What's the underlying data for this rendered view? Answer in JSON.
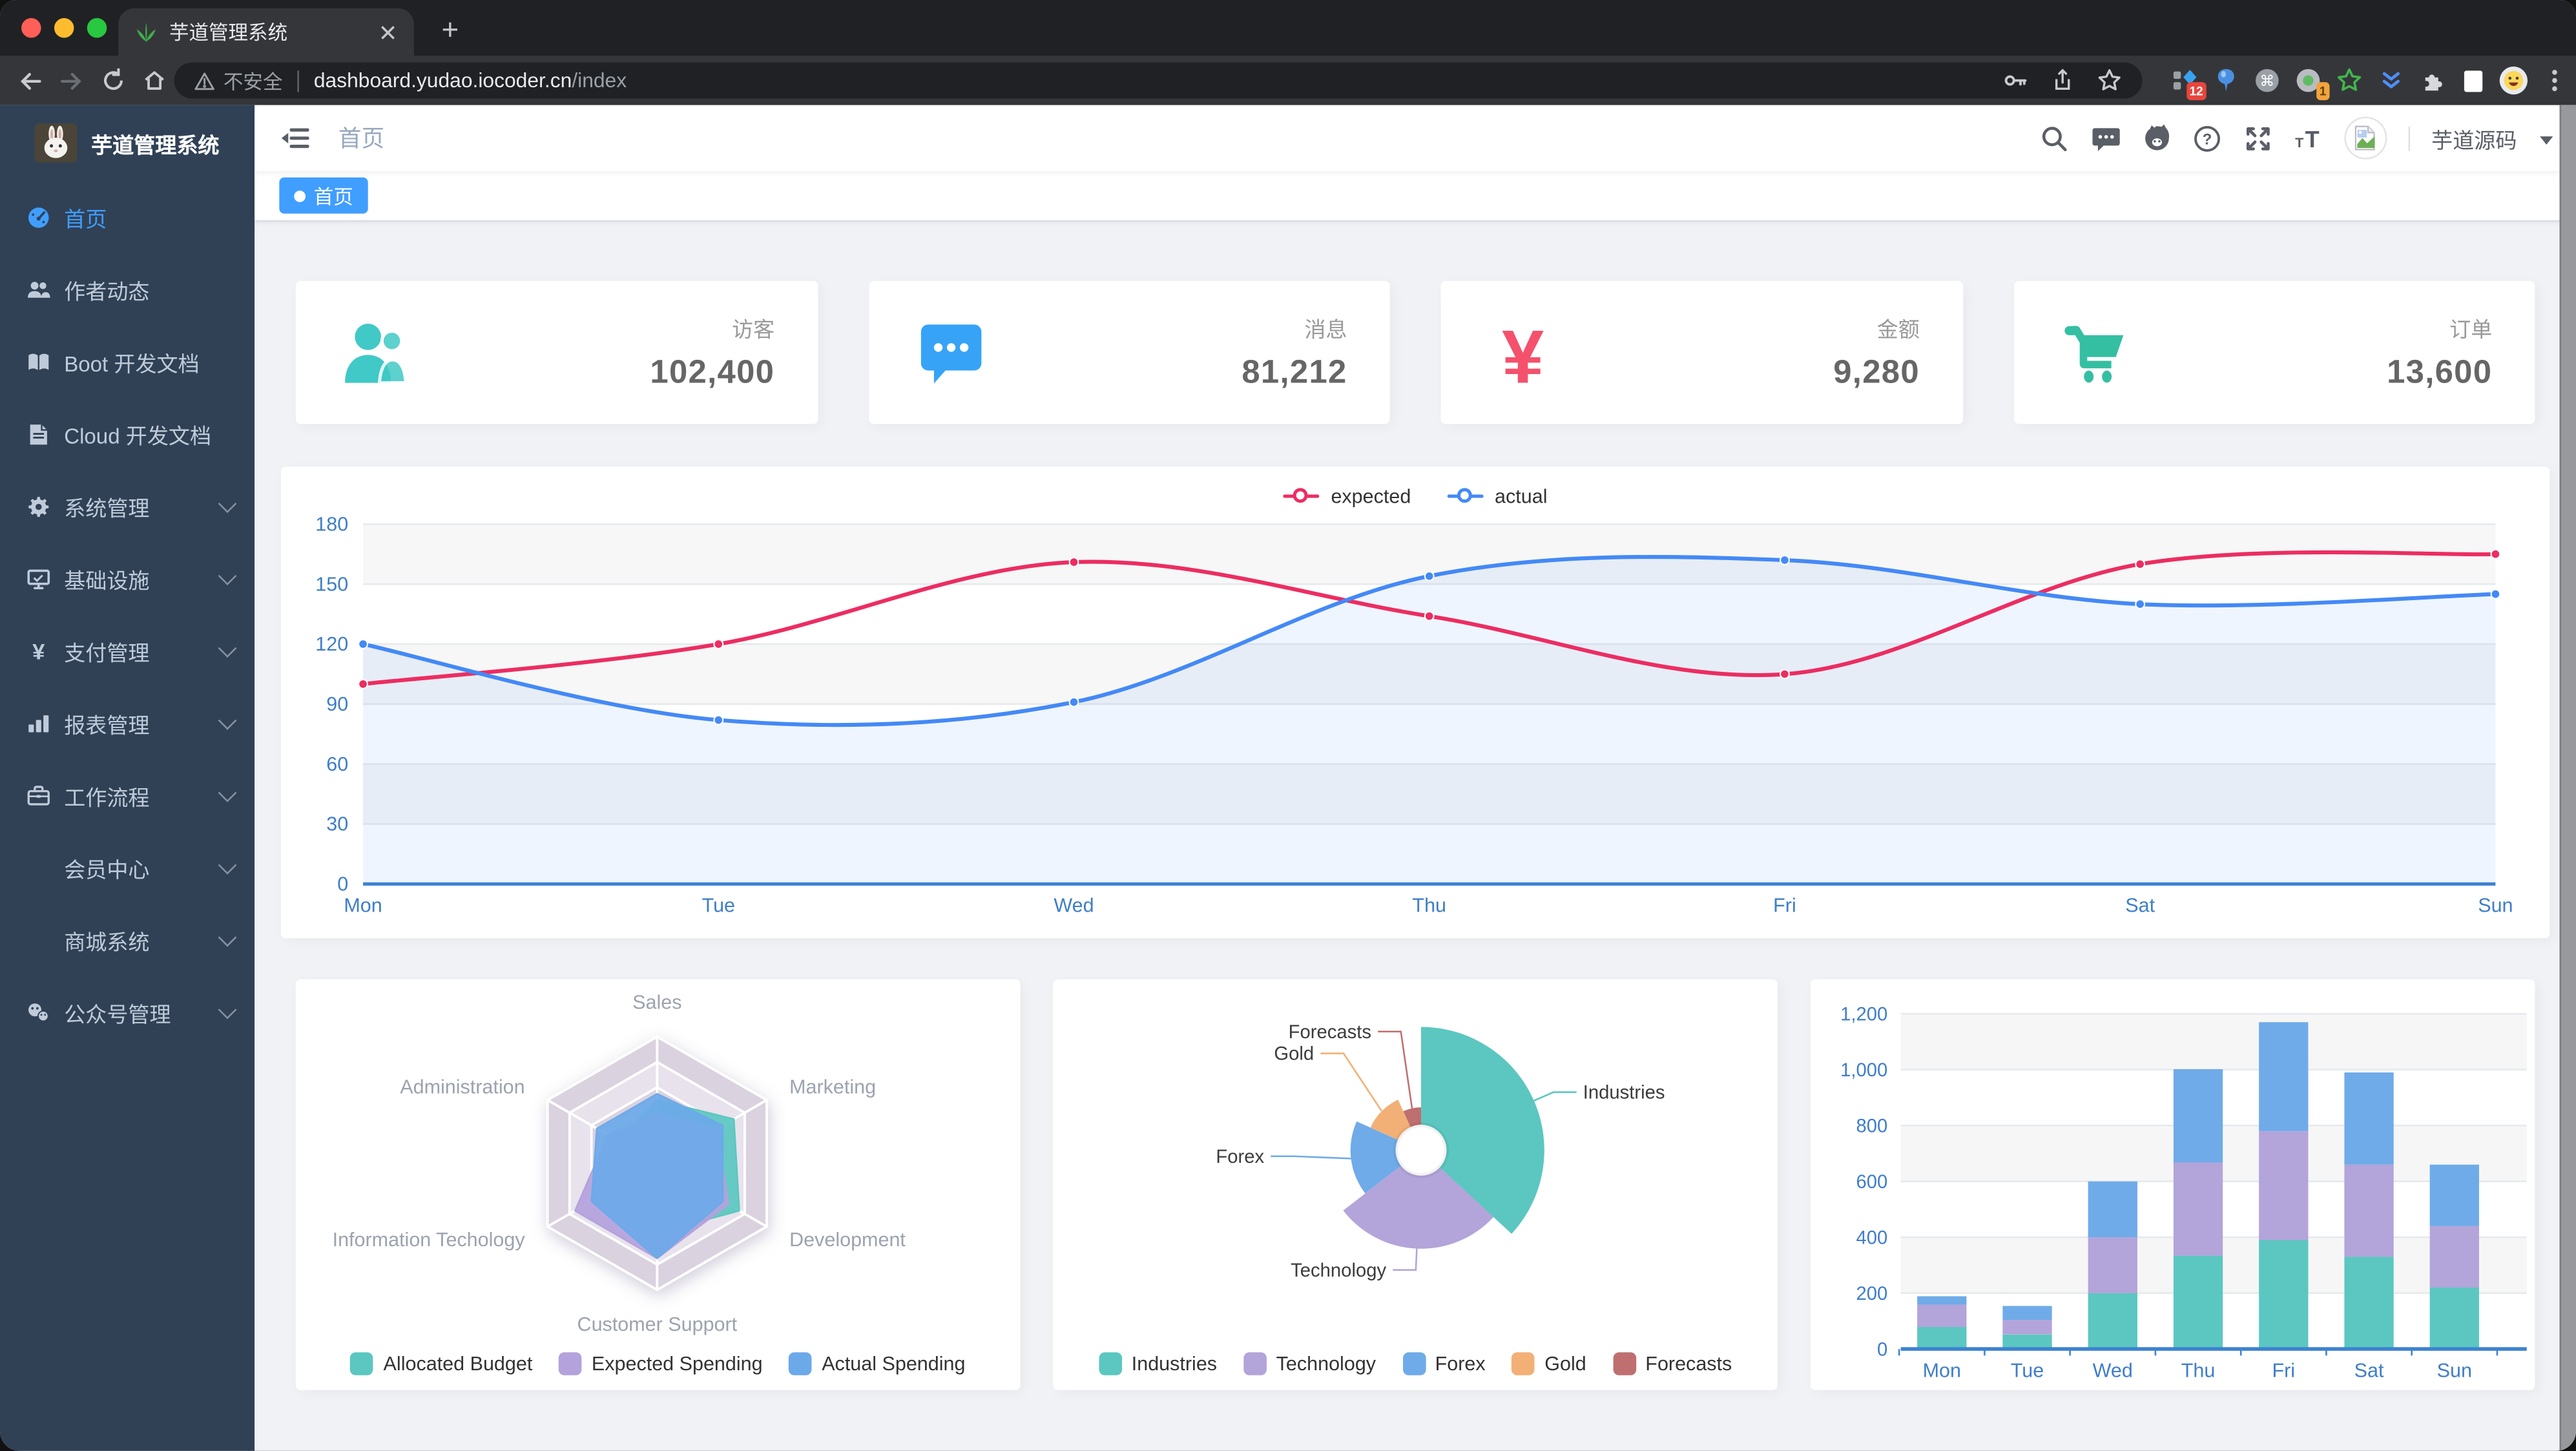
{
  "browser": {
    "tab": {
      "title": "芋道管理系统"
    },
    "address": {
      "security": "不安全",
      "url_host": "dashboard.yudao.iocoder.cn",
      "url_path": "/index"
    },
    "badges": {
      "ext1": "12",
      "ext4": "1"
    }
  },
  "sidebar": {
    "logo_title": "芋道管理系统",
    "items": [
      {
        "label": "首页",
        "icon": "dashboard-icon",
        "active": true
      },
      {
        "label": "作者动态",
        "icon": "people-icon"
      },
      {
        "label": "Boot 开发文档",
        "icon": "book-icon"
      },
      {
        "label": "Cloud 开发文档",
        "icon": "document-icon"
      },
      {
        "label": "系统管理",
        "icon": "gear-icon",
        "expandable": true
      },
      {
        "label": "基础设施",
        "icon": "monitor-icon",
        "expandable": true
      },
      {
        "label": "支付管理",
        "icon": "yen-icon",
        "expandable": true
      },
      {
        "label": "报表管理",
        "icon": "bar-chart-icon",
        "expandable": true
      },
      {
        "label": "工作流程",
        "icon": "briefcase-icon",
        "expandable": true
      },
      {
        "label": "会员中心",
        "icon": null,
        "expandable": true
      },
      {
        "label": "商城系统",
        "icon": null,
        "expandable": true
      },
      {
        "label": "公众号管理",
        "icon": "wechat-icon",
        "expandable": true
      }
    ]
  },
  "navbar": {
    "breadcrumb": "首页",
    "username": "芋道源码"
  },
  "tags": {
    "active": "首页"
  },
  "stats": {
    "cards": [
      {
        "label": "访客",
        "value": "102,400",
        "icon": "peoples-icon",
        "color": "#40c9c6"
      },
      {
        "label": "消息",
        "value": "81,212",
        "icon": "message-icon",
        "color": "#36a3f7"
      },
      {
        "label": "金额",
        "value": "9,280",
        "icon": "money-icon",
        "color": "#f4516c"
      },
      {
        "label": "订单",
        "value": "13,600",
        "icon": "cart-icon",
        "color": "#34bfa3"
      }
    ]
  },
  "chart_data": [
    {
      "id": "weekly-line",
      "type": "line",
      "x": [
        "Mon",
        "Tue",
        "Wed",
        "Thu",
        "Fri",
        "Sat",
        "Sun"
      ],
      "series": [
        {
          "name": "expected",
          "color": "#EC2D62",
          "values": [
            100,
            120,
            161,
            134,
            105,
            160,
            165
          ]
        },
        {
          "name": "actual",
          "color": "#4489F6",
          "values": [
            120,
            82,
            91,
            154,
            162,
            140,
            145
          ],
          "area": true
        }
      ],
      "ylim": [
        0,
        180
      ],
      "yticks": [
        0,
        30,
        60,
        90,
        120,
        150,
        180
      ],
      "grid": true,
      "legend_position": "top"
    },
    {
      "id": "budget-radar",
      "type": "radar",
      "indicators": [
        "Sales",
        "Administration",
        "Information Techology",
        "Customer Support",
        "Development",
        "Marketing"
      ],
      "series": [
        {
          "name": "Allocated Budget",
          "color": "#5BC7C0",
          "levels": [
            0.5,
            0.35,
            0.6,
            0.55,
            0.75,
            0.7
          ]
        },
        {
          "name": "Expected Spending",
          "color": "#B3A2DC",
          "levels": [
            0.4,
            0.45,
            0.75,
            0.75,
            0.65,
            0.55
          ]
        },
        {
          "name": "Actual Spending",
          "color": "#6CA9E9",
          "levels": [
            0.55,
            0.55,
            0.6,
            0.75,
            0.6,
            0.6
          ]
        }
      ],
      "legend_position": "bottom"
    },
    {
      "id": "market-pie",
      "type": "pie",
      "rose": true,
      "items": [
        {
          "name": "Industries",
          "value": 320,
          "color": "#5BC7C0"
        },
        {
          "name": "Technology",
          "value": 240,
          "color": "#B3A4DA"
        },
        {
          "name": "Forex",
          "value": 149,
          "color": "#6FABE8"
        },
        {
          "name": "Gold",
          "value": 100,
          "color": "#F2B077"
        },
        {
          "name": "Forecasts",
          "value": 59,
          "color": "#BF6F6F"
        }
      ],
      "legend_position": "bottom"
    },
    {
      "id": "weekly-bar",
      "type": "bar",
      "stacked": true,
      "categories": [
        "Mon",
        "Tue",
        "Wed",
        "Thu",
        "Fri",
        "Sat",
        "Sun"
      ],
      "series": [
        {
          "color": "#5BC7C0",
          "values": [
            79,
            52,
            200,
            334,
            390,
            330,
            220
          ]
        },
        {
          "color": "#B3A4DA",
          "values": [
            80,
            52,
            200,
            334,
            390,
            330,
            220
          ]
        },
        {
          "color": "#6FABE8",
          "values": [
            30,
            50,
            200,
            334,
            390,
            330,
            220
          ]
        }
      ],
      "ylim": [
        0,
        1200
      ],
      "yticks": [
        0,
        200,
        400,
        600,
        800,
        1000,
        1200
      ],
      "grid": true
    }
  ]
}
